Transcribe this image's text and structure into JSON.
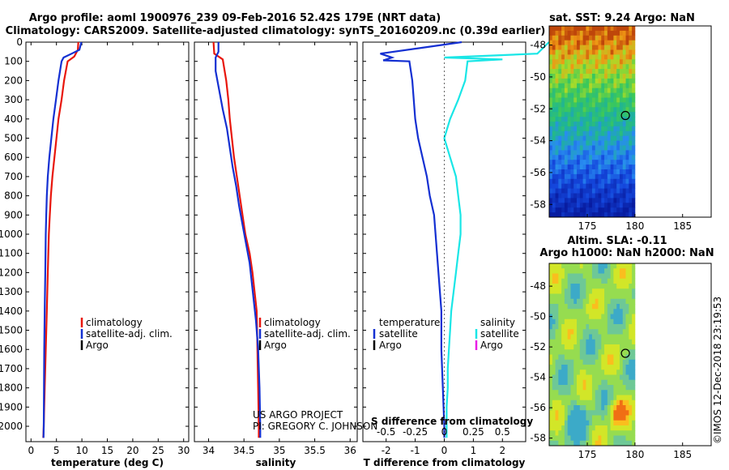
{
  "title": {
    "line1": "Argo profile: aoml 1900976_239 09-Feb-2016 52.42S 179E (NRT data)",
    "line2": "Climatology: CARS2009. Satellite-adjusted climatology: synTS_20160209.nc (0.39d earlier)"
  },
  "colors": {
    "climatology": "#e8160c",
    "satellite": "#1430d2",
    "satellite_salinity": "#19e6e6",
    "argo": "#000000",
    "argo_salinity": "#e81ee6"
  },
  "credit": {
    "line1": "US ARGO PROJECT",
    "line2": "PI: GREGORY C. JOHNSON",
    "imos": "©IMOS 12-Dec-2018 23:19:53"
  },
  "depth_ticks": [
    "0",
    "100",
    "200",
    "300",
    "400",
    "500",
    "600",
    "700",
    "800",
    "900",
    "1000",
    "1100",
    "1200",
    "1300",
    "1400",
    "1500",
    "1600",
    "1700",
    "1800",
    "1900",
    "2000"
  ],
  "chart_data": [
    {
      "type": "line",
      "id": "temperature",
      "xlabel": "temperature (deg C)",
      "ylabel": "",
      "xlim": [
        -1,
        31
      ],
      "ylim": [
        2080,
        0
      ],
      "xticks": [
        0,
        5,
        10,
        15,
        20,
        25,
        30
      ],
      "yticks": [
        0,
        100,
        200,
        300,
        400,
        500,
        600,
        700,
        800,
        900,
        1000,
        1100,
        1200,
        1300,
        1400,
        1500,
        1600,
        1700,
        1800,
        1900,
        2000
      ],
      "grid": false,
      "legend": {
        "placement": "lower-right",
        "entries": [
          "climatology",
          "satellite-adj. clim.",
          "Argo"
        ]
      },
      "series": [
        {
          "name": "climatology",
          "color": "#e8160c",
          "points": [
            [
              9.3,
              0
            ],
            [
              9.2,
              40
            ],
            [
              8.5,
              75
            ],
            [
              7.2,
              100
            ],
            [
              6.5,
              200
            ],
            [
              6.0,
              300
            ],
            [
              5.4,
              400
            ],
            [
              5.0,
              500
            ],
            [
              4.6,
              600
            ],
            [
              4.2,
              700
            ],
            [
              3.9,
              800
            ],
            [
              3.7,
              900
            ],
            [
              3.5,
              1000
            ],
            [
              3.3,
              1200
            ],
            [
              3.1,
              1400
            ],
            [
              2.9,
              1600
            ],
            [
              2.7,
              1800
            ],
            [
              2.5,
              2000
            ],
            [
              2.4,
              2060
            ]
          ]
        },
        {
          "name": "satellite-adj. clim.",
          "color": "#1430d2",
          "points": [
            [
              9.9,
              0
            ],
            [
              9.5,
              40
            ],
            [
              8.0,
              60
            ],
            [
              6.4,
              80
            ],
            [
              6.0,
              100
            ],
            [
              5.4,
              200
            ],
            [
              4.9,
              300
            ],
            [
              4.4,
              400
            ],
            [
              4.0,
              500
            ],
            [
              3.6,
              600
            ],
            [
              3.3,
              700
            ],
            [
              3.1,
              800
            ],
            [
              3.0,
              900
            ],
            [
              2.9,
              1000
            ],
            [
              2.8,
              1200
            ],
            [
              2.7,
              1400
            ],
            [
              2.6,
              1600
            ],
            [
              2.55,
              1800
            ],
            [
              2.5,
              2000
            ],
            [
              2.45,
              2060
            ]
          ]
        }
      ]
    },
    {
      "type": "line",
      "id": "salinity",
      "xlabel": "salinity",
      "ylabel": "",
      "xlim": [
        33.8,
        36.1
      ],
      "ylim": [
        2080,
        0
      ],
      "xticks": [
        34,
        34.5,
        35,
        35.5,
        36
      ],
      "xticklabels": [
        "34",
        "34.5",
        "35",
        "35.5",
        "36"
      ],
      "grid": false,
      "legend": {
        "placement": "lower-right",
        "entries": [
          "climatology",
          "satellite-adj. clim.",
          "Argo"
        ]
      },
      "series": [
        {
          "name": "climatology",
          "color": "#e8160c",
          "points": [
            [
              34.07,
              0
            ],
            [
              34.08,
              60
            ],
            [
              34.2,
              90
            ],
            [
              34.25,
              200
            ],
            [
              34.28,
              300
            ],
            [
              34.3,
              400
            ],
            [
              34.33,
              500
            ],
            [
              34.36,
              600
            ],
            [
              34.4,
              700
            ],
            [
              34.44,
              800
            ],
            [
              34.48,
              900
            ],
            [
              34.52,
              1000
            ],
            [
              34.58,
              1100
            ],
            [
              34.62,
              1200
            ],
            [
              34.65,
              1300
            ],
            [
              34.68,
              1400
            ],
            [
              34.69,
              1600
            ],
            [
              34.7,
              1800
            ],
            [
              34.71,
              2000
            ],
            [
              34.71,
              2060
            ]
          ]
        },
        {
          "name": "satellite-adj. clim.",
          "color": "#1430d2",
          "points": [
            [
              34.14,
              0
            ],
            [
              34.14,
              50
            ],
            [
              34.1,
              80
            ],
            [
              34.1,
              150
            ],
            [
              34.15,
              250
            ],
            [
              34.2,
              350
            ],
            [
              34.26,
              450
            ],
            [
              34.3,
              550
            ],
            [
              34.34,
              650
            ],
            [
              34.39,
              750
            ],
            [
              34.43,
              850
            ],
            [
              34.48,
              950
            ],
            [
              34.53,
              1050
            ],
            [
              34.58,
              1150
            ],
            [
              34.61,
              1250
            ],
            [
              34.64,
              1350
            ],
            [
              34.67,
              1450
            ],
            [
              34.7,
              1600
            ],
            [
              34.72,
              1800
            ],
            [
              34.73,
              2000
            ],
            [
              34.73,
              2060
            ]
          ]
        }
      ]
    },
    {
      "type": "line",
      "id": "difference",
      "xlabel": "T difference from climatology",
      "xlabel_top": "S difference from climatology",
      "xlim": [
        -2.8,
        2.8
      ],
      "ylim": [
        2080,
        0
      ],
      "xticks": [
        -2,
        -1,
        0,
        1,
        2
      ],
      "xticks_top": [
        -0.5,
        -0.25,
        0,
        0.25,
        0.5
      ],
      "xticklabels_top": [
        "-0.5",
        "-0.25",
        "0",
        "0.25",
        "0.5"
      ],
      "grid": false,
      "legend": {
        "placement": "lower-center",
        "temperature_heading": "temperature",
        "salinity_heading": "salinity",
        "temperature_entries": [
          "satellite",
          "Argo"
        ],
        "salinity_entries": [
          "satellite",
          "Argo"
        ]
      },
      "series": [
        {
          "name": "satellite",
          "group": "temperature",
          "color": "#1430d2",
          "points": [
            [
              0.6,
              0
            ],
            [
              -0.8,
              30
            ],
            [
              -2.2,
              60
            ],
            [
              -1.8,
              80
            ],
            [
              -2.1,
              95
            ],
            [
              -1.2,
              100
            ],
            [
              -1.1,
              200
            ],
            [
              -1.05,
              300
            ],
            [
              -1.0,
              400
            ],
            [
              -0.9,
              500
            ],
            [
              -0.75,
              600
            ],
            [
              -0.6,
              700
            ],
            [
              -0.5,
              800
            ],
            [
              -0.35,
              900
            ],
            [
              -0.3,
              1000
            ],
            [
              -0.2,
              1200
            ],
            [
              -0.1,
              1400
            ],
            [
              -0.1,
              1600
            ],
            [
              -0.05,
              1800
            ],
            [
              0.0,
              2000
            ],
            [
              0.0,
              2060
            ]
          ]
        },
        {
          "name": "satellite",
          "group": "salinity",
          "color": "#19e6e6",
          "points": [
            [
              0.9,
              0
            ],
            [
              0.8,
              60
            ],
            [
              0.0,
              80
            ],
            [
              0.5,
              90
            ],
            [
              0.2,
              100
            ],
            [
              0.18,
              200
            ],
            [
              0.12,
              300
            ],
            [
              0.05,
              400
            ],
            [
              0.0,
              500
            ],
            [
              0.05,
              600
            ],
            [
              0.1,
              700
            ],
            [
              0.12,
              800
            ],
            [
              0.14,
              900
            ],
            [
              0.14,
              1000
            ],
            [
              0.12,
              1100
            ],
            [
              0.1,
              1200
            ],
            [
              0.08,
              1300
            ],
            [
              0.06,
              1400
            ],
            [
              0.05,
              1500
            ],
            [
              0.04,
              1600
            ],
            [
              0.03,
              1700
            ],
            [
              0.03,
              1800
            ],
            [
              0.02,
              1900
            ],
            [
              0.02,
              2000
            ],
            [
              0.02,
              2060
            ]
          ]
        }
      ]
    },
    {
      "type": "heatmap",
      "id": "sst-map",
      "title": "sat. SST: 9.24 Argo: NaN",
      "xlim": [
        171,
        188
      ],
      "ylim": [
        -58.8,
        -46.8
      ],
      "xticks": [
        175,
        180,
        185
      ],
      "yticks": [
        -48,
        -50,
        -52,
        -54,
        -56,
        -58
      ],
      "marker": {
        "lon": 179,
        "lat": -52.42
      },
      "data_extent": {
        "lon": [
          171,
          180
        ],
        "lat": [
          -58.8,
          -46.8
        ]
      }
    },
    {
      "type": "heatmap",
      "id": "sla-map",
      "title_line1": "Altim. SLA: -0.11",
      "title_line2": "Argo h1000: NaN h2000: NaN",
      "xlim": [
        171,
        188
      ],
      "ylim": [
        -58.5,
        -46.5
      ],
      "xticks": [
        175,
        180,
        185
      ],
      "yticks": [
        -48,
        -50,
        -52,
        -54,
        -56,
        -58
      ],
      "marker": {
        "lon": 179,
        "lat": -52.42
      },
      "data_extent": {
        "lon": [
          171,
          180
        ],
        "lat": [
          -58.5,
          -46.5
        ]
      }
    }
  ]
}
